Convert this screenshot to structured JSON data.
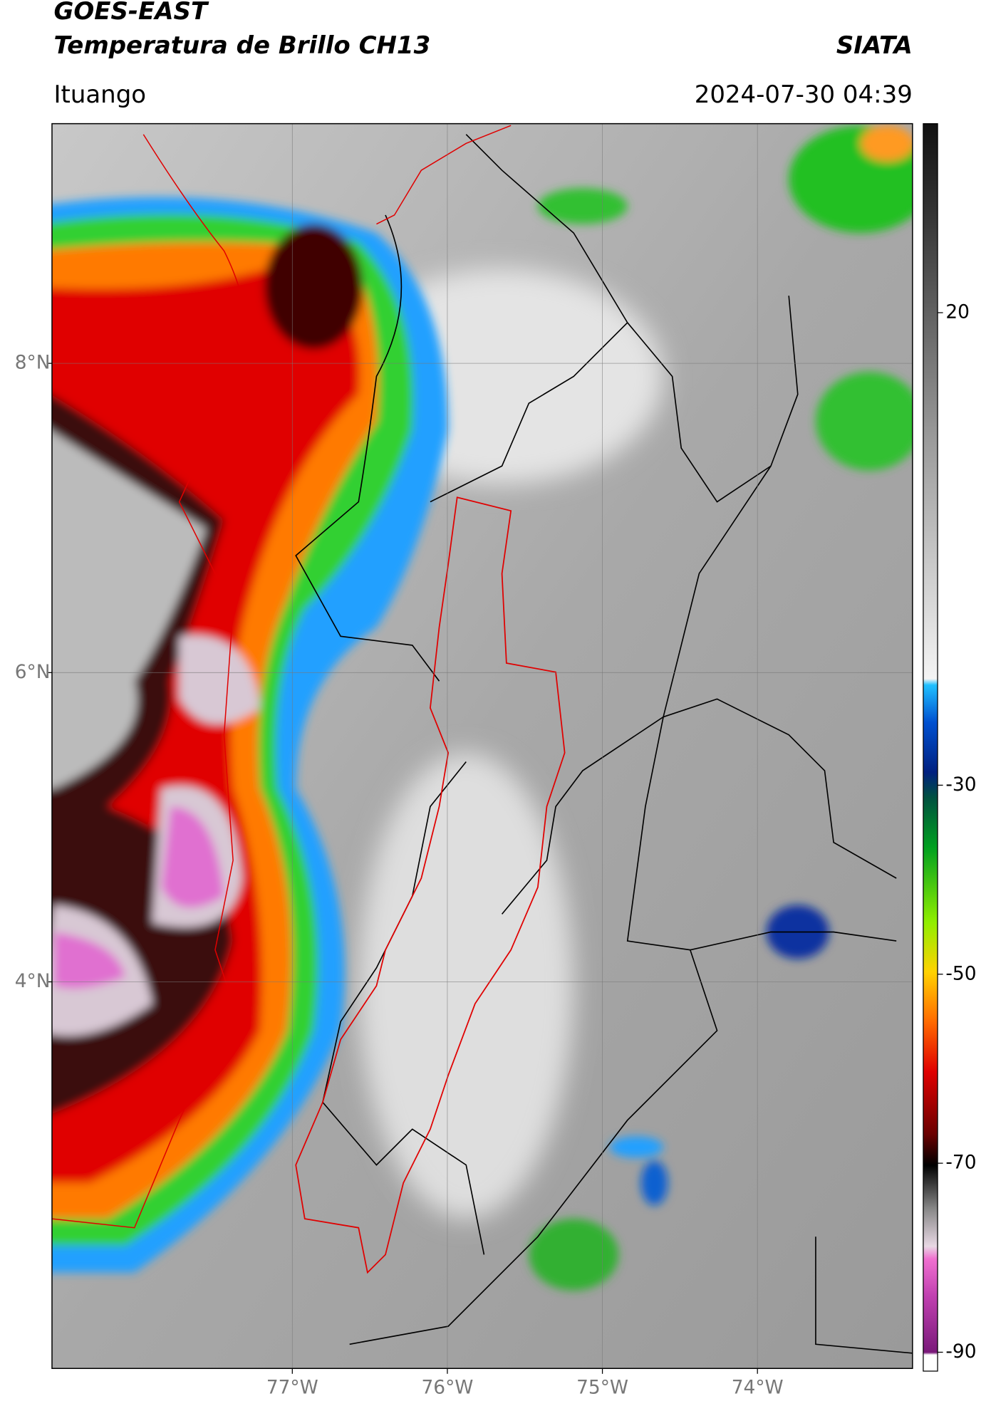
{
  "header": {
    "title": "GOES-EAST",
    "subtitle": "Temperatura de Brillo CH13",
    "org": "SIATA",
    "region": "Ituango",
    "datetime": "2024-07-30 04:39"
  },
  "map": {
    "xlim": [
      -78.55,
      -73.0
    ],
    "ylim": [
      1.5,
      9.55
    ],
    "xticks": [
      {
        "value": -77,
        "label": "77°W"
      },
      {
        "value": -76,
        "label": "76°W"
      },
      {
        "value": -75,
        "label": "75°W"
      },
      {
        "value": -74,
        "label": "74°W"
      }
    ],
    "yticks": [
      {
        "value": 8,
        "label": "8°N"
      },
      {
        "value": 6,
        "label": "6°N"
      },
      {
        "value": 4,
        "label": "4°N"
      }
    ]
  },
  "colorbar": {
    "clim": [
      -92,
      40
    ],
    "ticks": [
      20,
      -30,
      -50,
      -70,
      -90
    ]
  }
}
